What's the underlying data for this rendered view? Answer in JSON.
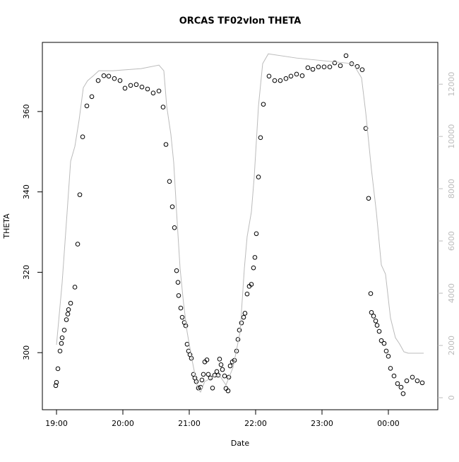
{
  "chart_data": {
    "type": "scatter",
    "title": "ORCAS TF02vlon THETA",
    "xlabel": "Date",
    "ylabel": "THETA",
    "xlim": [
      18.787,
      24.745
    ],
    "xticks": [
      {
        "value": 19,
        "label": "19:00"
      },
      {
        "value": 20,
        "label": "20:00"
      },
      {
        "value": 21,
        "label": "21:00"
      },
      {
        "value": 22,
        "label": "22:00"
      },
      {
        "value": 23,
        "label": "23:00"
      },
      {
        "value": 24,
        "label": "00:00"
      }
    ],
    "ylim": [
      285.8,
      377.2
    ],
    "yticks": [
      300,
      320,
      340,
      360
    ],
    "y2lim": [
      -460,
      13600
    ],
    "y2ticks": [
      0,
      2000,
      4000,
      6000,
      8000,
      10000,
      12000
    ],
    "y2color": "#bbbbbb",
    "series": [
      {
        "type": "scatter",
        "color": "#000000",
        "x": [
          18.989,
          19.0,
          19.021,
          19.053,
          19.074,
          19.085,
          19.117,
          19.149,
          19.17,
          19.181,
          19.213,
          19.277,
          19.319,
          19.351,
          19.394,
          19.457,
          19.532,
          19.628,
          19.713,
          19.787,
          19.872,
          19.957,
          20.032,
          20.117,
          20.202,
          20.287,
          20.372,
          20.457,
          20.543,
          20.606,
          20.649,
          20.702,
          20.745,
          20.777,
          20.809,
          20.83,
          20.84,
          20.872,
          20.894,
          20.926,
          20.947,
          20.968,
          20.989,
          21.011,
          21.032,
          21.064,
          21.085,
          21.106,
          21.138,
          21.17,
          21.191,
          21.213,
          21.234,
          21.266,
          21.287,
          21.319,
          21.351,
          21.383,
          21.415,
          21.436,
          21.457,
          21.479,
          21.5,
          21.532,
          21.553,
          21.585,
          21.596,
          21.617,
          21.649,
          21.681,
          21.713,
          21.734,
          21.755,
          21.787,
          21.819,
          21.84,
          21.872,
          21.904,
          21.936,
          21.968,
          21.989,
          22.011,
          22.043,
          22.074,
          22.117,
          22.202,
          22.287,
          22.372,
          22.457,
          22.532,
          22.617,
          22.702,
          22.787,
          22.862,
          22.947,
          23.032,
          23.117,
          23.191,
          23.277,
          23.362,
          23.447,
          23.532,
          23.606,
          23.66,
          23.702,
          23.734,
          23.745,
          23.777,
          23.809,
          23.83,
          23.862,
          23.894,
          23.936,
          23.968,
          24.0,
          24.032,
          24.085,
          24.138,
          24.191,
          24.223,
          24.277,
          24.362,
          24.436,
          24.511
        ],
        "values": [
          291.8,
          292.6,
          296.0,
          300.4,
          302.3,
          303.7,
          305.6,
          308.2,
          309.6,
          310.7,
          312.3,
          316.3,
          327.0,
          339.3,
          353.7,
          361.4,
          363.7,
          367.7,
          368.9,
          368.8,
          368.2,
          367.7,
          365.8,
          366.5,
          366.7,
          366.1,
          365.6,
          364.6,
          365.1,
          361.1,
          351.8,
          342.6,
          336.3,
          331.1,
          320.4,
          317.5,
          314.2,
          311.1,
          308.8,
          307.5,
          306.7,
          302.1,
          300.4,
          299.5,
          298.6,
          294.6,
          293.7,
          292.8,
          291.2,
          291.4,
          293.2,
          294.6,
          297.7,
          298.2,
          294.6,
          293.7,
          291.2,
          294.4,
          295.3,
          294.4,
          298.4,
          297.0,
          295.8,
          294.2,
          291.1,
          290.5,
          293.9,
          296.7,
          297.7,
          298.1,
          300.4,
          303.3,
          305.6,
          307.4,
          308.8,
          309.8,
          314.6,
          316.5,
          317.0,
          321.1,
          323.7,
          329.6,
          343.7,
          353.5,
          361.8,
          368.8,
          367.7,
          367.7,
          368.2,
          368.8,
          369.3,
          368.9,
          370.9,
          370.5,
          371.1,
          371.1,
          371.1,
          372.1,
          371.4,
          373.9,
          371.9,
          371.2,
          370.4,
          355.8,
          338.4,
          314.7,
          310.0,
          309.1,
          307.9,
          306.8,
          305.3,
          303.0,
          302.3,
          300.4,
          299.1,
          296.1,
          294.2,
          292.3,
          291.4,
          289.8,
          293.0,
          293.9,
          293.0,
          292.5
        ]
      },
      {
        "type": "line",
        "axis": "y2",
        "color": "#bbbbbb",
        "x": [
          19.0,
          19.085,
          19.16,
          19.213,
          19.277,
          19.34,
          19.404,
          19.468,
          19.543,
          19.638,
          19.851,
          20.277,
          20.543,
          20.617,
          20.66,
          20.723,
          20.766,
          20.809,
          20.862,
          20.915,
          20.968,
          21.043,
          21.128,
          21.17,
          21.234,
          21.34,
          21.447,
          21.553,
          21.66,
          21.766,
          21.83,
          21.872,
          21.936,
          21.979,
          22.043,
          22.106,
          22.191,
          22.617,
          23.468,
          23.596,
          23.66,
          23.745,
          23.819,
          23.894,
          23.957,
          24.032,
          24.106,
          24.17,
          24.234,
          24.298,
          24.532
        ],
        "values": [
          2027,
          4405,
          7108,
          9054,
          9622,
          10622,
          11865,
          12135,
          12297,
          12514,
          12514,
          12595,
          12730,
          12514,
          11162,
          10081,
          9000,
          7108,
          4946,
          3595,
          2514,
          1432,
          351,
          216,
          622,
          757,
          892,
          486,
          1162,
          2514,
          4946,
          6162,
          7108,
          8459,
          11162,
          12784,
          13162,
          13000,
          12784,
          12243,
          10892,
          8730,
          7108,
          5081,
          4730,
          3054,
          2297,
          2054,
          1757,
          1703,
          1703
        ]
      }
    ]
  }
}
